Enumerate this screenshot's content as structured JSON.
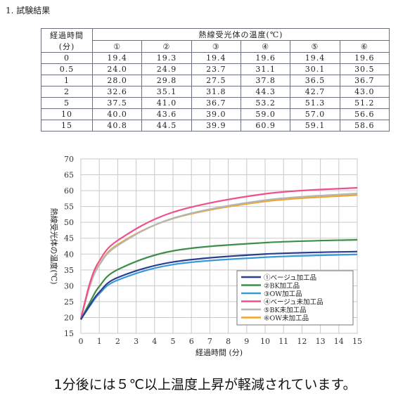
{
  "section_title": "1. 試験結果",
  "table": {
    "row_header": "経過時間 (分)",
    "group_header": "熱線受光体の温度(℃)",
    "columns": [
      "①",
      "②",
      "③",
      "④",
      "⑤",
      "⑥"
    ],
    "rows": [
      {
        "time": "0",
        "values": [
          "19.4",
          "19.3",
          "19.4",
          "19.6",
          "19.4",
          "19.6"
        ]
      },
      {
        "time": "0.5",
        "values": [
          "24.0",
          "24.9",
          "23.7",
          "31.1",
          "30.1",
          "30.5"
        ]
      },
      {
        "time": "1",
        "values": [
          "28.0",
          "29.8",
          "27.5",
          "37.8",
          "36.5",
          "36.7"
        ]
      },
      {
        "time": "2",
        "values": [
          "32.6",
          "35.1",
          "31.8",
          "44.3",
          "42.7",
          "43.0"
        ]
      },
      {
        "time": "5",
        "values": [
          "37.5",
          "41.0",
          "36.7",
          "53.2",
          "51.3",
          "51.2"
        ]
      },
      {
        "time": "10",
        "values": [
          "40.0",
          "43.6",
          "39.0",
          "59.0",
          "57.0",
          "56.6"
        ]
      },
      {
        "time": "15",
        "values": [
          "40.8",
          "44.5",
          "39.9",
          "60.9",
          "59.1",
          "58.6"
        ]
      }
    ]
  },
  "chart_data": {
    "type": "line",
    "xlabel": "経過時間 (分)",
    "ylabel": "熱線受光体の温度(℃)",
    "xlim": [
      0,
      15
    ],
    "ylim": [
      15,
      70
    ],
    "xticks": [
      "0",
      "1",
      "2",
      "3",
      "4",
      "5",
      "6",
      "7",
      "8",
      "9",
      "10",
      "11",
      "12",
      "13",
      "14",
      "15"
    ],
    "yticks": [
      "15",
      "20",
      "25",
      "30",
      "35",
      "40",
      "45",
      "50",
      "55",
      "60",
      "65",
      "70"
    ],
    "grid": true,
    "legend_position": "bottom-right",
    "x": [
      0,
      0.5,
      1,
      2,
      5,
      10,
      15
    ],
    "series": [
      {
        "name": "①ベージュ加工品",
        "color": "#2b3f8f",
        "values": [
          19.4,
          24.0,
          28.0,
          32.6,
          37.5,
          40.0,
          40.8
        ]
      },
      {
        "name": "②BK加工品",
        "color": "#3e8e4a",
        "values": [
          19.3,
          24.9,
          29.8,
          35.1,
          41.0,
          43.6,
          44.5
        ]
      },
      {
        "name": "③OW加工品",
        "color": "#3a9ad9",
        "values": [
          19.4,
          23.7,
          27.5,
          31.8,
          36.7,
          39.0,
          39.9
        ]
      },
      {
        "name": "④ベージュ未加工品",
        "color": "#ef4f8e",
        "values": [
          19.6,
          31.1,
          37.8,
          44.3,
          53.2,
          59.0,
          60.9
        ]
      },
      {
        "name": "⑤BK未加工品",
        "color": "#b5b5b5",
        "values": [
          19.4,
          30.1,
          36.5,
          42.7,
          51.3,
          57.0,
          59.1
        ]
      },
      {
        "name": "⑥OW未加工品",
        "color": "#f0a431",
        "values": [
          19.6,
          30.5,
          36.7,
          43.0,
          51.2,
          56.6,
          58.6
        ]
      }
    ]
  },
  "caption": "1分後には５℃以上温度上昇が軽減されています。"
}
